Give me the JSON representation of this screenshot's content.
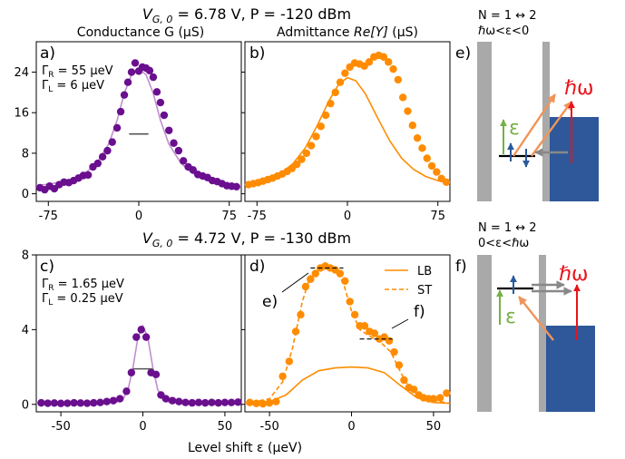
{
  "row_titles": [
    {
      "prefix": "V",
      "sub": "G, 0",
      "rest": " = 6.78 V, P = -120 dBm"
    },
    {
      "prefix": "V",
      "sub": "G, 0",
      "rest": " = 4.72 V, P = -130 dBm"
    }
  ],
  "column_titles": {
    "g": "Conductance G (μS)",
    "y_pre": "Admittance ",
    "y_it": "Re[Y]",
    "y_post": " (μS)"
  },
  "xlabel": "Level shift ε (μeV)",
  "panel_letters": {
    "a": "a)",
    "b": "b)",
    "c": "c)",
    "d": "d)",
    "e": "e)",
    "f": "f)"
  },
  "gamma_top": {
    "r": "ΓR = 55 μeV",
    "l": "ΓL = 6 μeV"
  },
  "gamma_bottom": {
    "r": "ΓR = 1.65 μeV",
    "l": "ΓL = 0.25 μeV"
  },
  "gamma_labels": {
    "g": "Γ",
    "r": "R",
    "l": "L",
    "top_r": " = 55 μeV",
    "top_l": " = 6 μeV",
    "bot_r": " = 1.65 μeV",
    "bot_l": " = 0.25 μeV"
  },
  "annotations": {
    "e": "e)",
    "f": "f)"
  },
  "colors": {
    "purple": "#6a0f8e",
    "purple_line": "#c08fcf",
    "orange": "#ff8c00",
    "gray": "#a9a9a9",
    "blue": "#2e5899",
    "red": "#e8141b",
    "green": "#76b044",
    "dark_blue": "#2a5a9c",
    "arrow_orange": "#f0945a",
    "arrow_gray": "#888888"
  },
  "schematics": [
    {
      "transition": "N = 1 ↔ 2",
      "condition": "ℏω<ε<0",
      "hbar_omega": "ℏω",
      "epsilon": "ε"
    },
    {
      "transition": "N = 1 ↔ 2",
      "condition": "0<ε<ℏω",
      "hbar_omega": "ℏω",
      "epsilon": "ε"
    }
  ],
  "chart_data": [
    {
      "panel": "a",
      "type": "scatter",
      "xlim": [
        -85,
        85
      ],
      "ylim": [
        -1.5,
        30
      ],
      "xticks": [
        -75,
        0,
        75
      ],
      "yticks": [
        0,
        8,
        16,
        24
      ],
      "points": [
        [
          -82,
          1.2
        ],
        [
          -78,
          0.8
        ],
        [
          -74,
          1.5
        ],
        [
          -70,
          1.0
        ],
        [
          -66,
          1.8
        ],
        [
          -62,
          2.3
        ],
        [
          -58,
          2.2
        ],
        [
          -54,
          2.6
        ],
        [
          -50,
          3.1
        ],
        [
          -46,
          3.6
        ],
        [
          -42,
          3.7
        ],
        [
          -38,
          5.3
        ],
        [
          -34,
          6.0
        ],
        [
          -30,
          7.3
        ],
        [
          -26,
          8.5
        ],
        [
          -22,
          10.2
        ],
        [
          -18,
          13.0
        ],
        [
          -15,
          16.2
        ],
        [
          -12,
          19.5
        ],
        [
          -9,
          22.0
        ],
        [
          -6,
          24.0
        ],
        [
          -3,
          25.8
        ],
        [
          0,
          24.2
        ],
        [
          3,
          25.0
        ],
        [
          6,
          24.8
        ],
        [
          9,
          24.3
        ],
        [
          12,
          23.0
        ],
        [
          15,
          20.1
        ],
        [
          18,
          18.0
        ],
        [
          21,
          15.5
        ],
        [
          25,
          12.5
        ],
        [
          29,
          10.0
        ],
        [
          33,
          8.5
        ],
        [
          37,
          6.5
        ],
        [
          41,
          5.3
        ],
        [
          45,
          4.7
        ],
        [
          49,
          3.8
        ],
        [
          53,
          3.5
        ],
        [
          57,
          3.2
        ],
        [
          61,
          2.6
        ],
        [
          65,
          2.4
        ],
        [
          69,
          2.0
        ],
        [
          73,
          1.6
        ],
        [
          77,
          1.5
        ],
        [
          81,
          1.4
        ]
      ],
      "fit": [
        [
          -85,
          1.6
        ],
        [
          -75,
          1.9
        ],
        [
          -65,
          2.3
        ],
        [
          -55,
          2.9
        ],
        [
          -45,
          4.0
        ],
        [
          -35,
          6.0
        ],
        [
          -25,
          9.8
        ],
        [
          -18,
          14.5
        ],
        [
          -12,
          19.8
        ],
        [
          -6,
          23.5
        ],
        [
          0,
          24.6
        ],
        [
          6,
          23.5
        ],
        [
          12,
          19.8
        ],
        [
          18,
          14.5
        ],
        [
          25,
          9.8
        ],
        [
          35,
          6.0
        ],
        [
          45,
          4.0
        ],
        [
          55,
          2.9
        ],
        [
          65,
          2.3
        ],
        [
          75,
          1.9
        ],
        [
          85,
          1.6
        ]
      ],
      "hline": {
        "y": 11.8,
        "x": [
          -8,
          8
        ]
      }
    },
    {
      "panel": "b",
      "type": "scatter",
      "xlim": [
        -85,
        85
      ],
      "ylim": [
        -1.5,
        30
      ],
      "xticks": [
        -75,
        0,
        75
      ],
      "yticks": [
        0,
        8,
        16,
        24
      ],
      "points": [
        [
          -82,
          1.8
        ],
        [
          -78,
          2.0
        ],
        [
          -74,
          2.2
        ],
        [
          -70,
          2.5
        ],
        [
          -66,
          2.8
        ],
        [
          -62,
          3.1
        ],
        [
          -58,
          3.5
        ],
        [
          -54,
          3.9
        ],
        [
          -50,
          4.4
        ],
        [
          -46,
          5.0
        ],
        [
          -42,
          5.8
        ],
        [
          -38,
          6.8
        ],
        [
          -34,
          8.0
        ],
        [
          -30,
          9.5
        ],
        [
          -26,
          11.3
        ],
        [
          -22,
          13.3
        ],
        [
          -18,
          15.5
        ],
        [
          -14,
          17.8
        ],
        [
          -10,
          20.0
        ],
        [
          -6,
          22.0
        ],
        [
          -2,
          23.8
        ],
        [
          2,
          25.0
        ],
        [
          6,
          25.8
        ],
        [
          10,
          25.6
        ],
        [
          14,
          25.2
        ],
        [
          18,
          26.0
        ],
        [
          22,
          27.0
        ],
        [
          26,
          27.3
        ],
        [
          30,
          27.0
        ],
        [
          34,
          26.0
        ],
        [
          38,
          24.6
        ],
        [
          42,
          22.5
        ],
        [
          46,
          19.0
        ],
        [
          50,
          16.3
        ],
        [
          54,
          13.5
        ],
        [
          58,
          11.0
        ],
        [
          62,
          9.0
        ],
        [
          66,
          7.0
        ],
        [
          70,
          5.5
        ],
        [
          74,
          4.3
        ],
        [
          78,
          3.0
        ],
        [
          82,
          2.3
        ]
      ],
      "fit": [
        [
          -85,
          1.8
        ],
        [
          -75,
          2.3
        ],
        [
          -65,
          3.0
        ],
        [
          -55,
          4.1
        ],
        [
          -45,
          6.0
        ],
        [
          -35,
          9.0
        ],
        [
          -25,
          13.5
        ],
        [
          -15,
          18.5
        ],
        [
          -7,
          21.7
        ],
        [
          0,
          22.9
        ],
        [
          7,
          22.3
        ],
        [
          15,
          19.7
        ],
        [
          25,
          15.0
        ],
        [
          35,
          10.5
        ],
        [
          45,
          7.0
        ],
        [
          55,
          4.8
        ],
        [
          65,
          3.4
        ],
        [
          75,
          2.6
        ],
        [
          85,
          2.1
        ]
      ]
    },
    {
      "panel": "c",
      "type": "scatter",
      "xlim": [
        -65,
        60
      ],
      "ylim": [
        -0.4,
        8.0
      ],
      "xticks": [
        -50,
        0,
        50
      ],
      "yticks": [
        0,
        4,
        8
      ],
      "points": [
        [
          -62,
          0.08
        ],
        [
          -58,
          0.06
        ],
        [
          -54,
          0.07
        ],
        [
          -50,
          0.05
        ],
        [
          -46,
          0.06
        ],
        [
          -42,
          0.08
        ],
        [
          -38,
          0.07
        ],
        [
          -34,
          0.06
        ],
        [
          -30,
          0.08
        ],
        [
          -26,
          0.1
        ],
        [
          -22,
          0.15
        ],
        [
          -18,
          0.2
        ],
        [
          -14,
          0.3
        ],
        [
          -10,
          0.7
        ],
        [
          -7,
          1.7
        ],
        [
          -4,
          3.6
        ],
        [
          -1,
          4.0
        ],
        [
          2,
          3.6
        ],
        [
          5,
          1.7
        ],
        [
          8,
          1.6
        ],
        [
          11,
          0.5
        ],
        [
          14,
          0.3
        ],
        [
          18,
          0.2
        ],
        [
          22,
          0.15
        ],
        [
          26,
          0.1
        ],
        [
          30,
          0.08
        ],
        [
          34,
          0.1
        ],
        [
          38,
          0.08
        ],
        [
          42,
          0.1
        ],
        [
          46,
          0.08
        ],
        [
          50,
          0.1
        ],
        [
          54,
          0.1
        ],
        [
          58,
          0.12
        ]
      ],
      "fit": [
        [
          -65,
          0.05
        ],
        [
          -25,
          0.06
        ],
        [
          -16,
          0.12
        ],
        [
          -12,
          0.3
        ],
        [
          -9,
          0.8
        ],
        [
          -6,
          2.0
        ],
        [
          -3,
          3.6
        ],
        [
          0,
          4.2
        ],
        [
          3,
          3.6
        ],
        [
          6,
          2.0
        ],
        [
          9,
          0.8
        ],
        [
          12,
          0.3
        ],
        [
          16,
          0.12
        ],
        [
          25,
          0.06
        ],
        [
          60,
          0.05
        ]
      ],
      "hline": {
        "y": 1.9,
        "x": [
          -6,
          6
        ]
      }
    },
    {
      "panel": "d",
      "type": "scatter",
      "xlim": [
        -65,
        60
      ],
      "ylim": [
        -0.4,
        8.0
      ],
      "xticks": [
        -50,
        0,
        50
      ],
      "yticks": [
        0,
        4,
        8
      ],
      "legend": {
        "placement": "top-right",
        "entries": [
          "LB",
          "ST"
        ]
      },
      "points": [
        [
          -62,
          0.1
        ],
        [
          -58,
          0.05
        ],
        [
          -54,
          0.03
        ],
        [
          -50,
          0.08
        ],
        [
          -46,
          0.15
        ],
        [
          -42,
          1.5
        ],
        [
          -38,
          2.3
        ],
        [
          -34,
          3.9
        ],
        [
          -31,
          4.8
        ],
        [
          -28,
          6.3
        ],
        [
          -25,
          6.7
        ],
        [
          -22,
          7.0
        ],
        [
          -19,
          7.3
        ],
        [
          -16,
          7.4
        ],
        [
          -13,
          7.3
        ],
        [
          -10,
          7.2
        ],
        [
          -7,
          7.0
        ],
        [
          -4,
          6.6
        ],
        [
          -1,
          5.5
        ],
        [
          2,
          4.8
        ],
        [
          5,
          4.2
        ],
        [
          8,
          4.2
        ],
        [
          11,
          3.9
        ],
        [
          14,
          3.8
        ],
        [
          17,
          3.5
        ],
        [
          20,
          3.6
        ],
        [
          23,
          3.4
        ],
        [
          26,
          2.8
        ],
        [
          29,
          2.1
        ],
        [
          32,
          1.3
        ],
        [
          35,
          0.9
        ],
        [
          38,
          0.8
        ],
        [
          41,
          0.5
        ],
        [
          44,
          0.35
        ],
        [
          47,
          0.3
        ],
        [
          50,
          0.3
        ],
        [
          54,
          0.35
        ],
        [
          58,
          0.6
        ]
      ],
      "fit_lb": [
        [
          -65,
          0.05
        ],
        [
          -50,
          0.15
        ],
        [
          -40,
          0.5
        ],
        [
          -30,
          1.3
        ],
        [
          -20,
          1.8
        ],
        [
          -10,
          1.95
        ],
        [
          0,
          2.0
        ],
        [
          10,
          1.95
        ],
        [
          20,
          1.7
        ],
        [
          30,
          1.0
        ],
        [
          40,
          0.35
        ],
        [
          50,
          0.1
        ],
        [
          60,
          0.05
        ]
      ],
      "fit_st": [
        [
          -65,
          0.05
        ],
        [
          -50,
          0.3
        ],
        [
          -42,
          1.2
        ],
        [
          -36,
          3.0
        ],
        [
          -30,
          5.5
        ],
        [
          -25,
          6.9
        ],
        [
          -20,
          7.3
        ],
        [
          -15,
          7.35
        ],
        [
          -10,
          7.2
        ],
        [
          -5,
          6.5
        ],
        [
          0,
          5.0
        ],
        [
          5,
          4.0
        ],
        [
          12,
          3.6
        ],
        [
          18,
          3.3
        ],
        [
          24,
          2.8
        ],
        [
          30,
          1.7
        ],
        [
          36,
          0.8
        ],
        [
          45,
          0.3
        ],
        [
          60,
          0.05
        ]
      ],
      "hlines": [
        {
          "y": 7.3,
          "x": [
            -25,
            -5
          ]
        },
        {
          "y": 3.5,
          "x": [
            5,
            25
          ]
        }
      ]
    }
  ]
}
